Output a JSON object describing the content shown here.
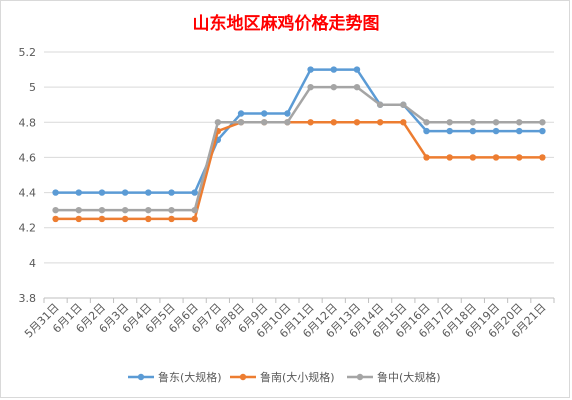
{
  "chart_data": {
    "type": "line",
    "title": "山东地区麻鸡价格走势图",
    "xlabel": "",
    "ylabel": "",
    "ylim": [
      3.8,
      5.2
    ],
    "yticks": [
      "3.8",
      "4",
      "4.2",
      "4.4",
      "4.6",
      "4.8",
      "5",
      "5.2"
    ],
    "grid": "horizontal",
    "legend_position": "bottom",
    "categories": [
      "5月31日",
      "6月1日",
      "6月2日",
      "6月3日",
      "6月4日",
      "6月5日",
      "6月6日",
      "6月7日",
      "6月8日",
      "6月9日",
      "6月10日",
      "6月11日",
      "6月12日",
      "6月13日",
      "6月14日",
      "6月15日",
      "6月16日",
      "6月17日",
      "6月18日",
      "6月19日",
      "6月20日",
      "6月21日"
    ],
    "series": [
      {
        "name": "鲁东(大规格)",
        "color": "#5b9bd5",
        "values": [
          4.4,
          4.4,
          4.4,
          4.4,
          4.4,
          4.4,
          4.4,
          4.7,
          4.85,
          4.85,
          4.85,
          5.1,
          5.1,
          5.1,
          4.9,
          4.9,
          4.75,
          4.75,
          4.75,
          4.75,
          4.75,
          4.75
        ]
      },
      {
        "name": "鲁南(大小规格)",
        "color": "#ed7d31",
        "values": [
          4.25,
          4.25,
          4.25,
          4.25,
          4.25,
          4.25,
          4.25,
          4.75,
          4.8,
          4.8,
          4.8,
          4.8,
          4.8,
          4.8,
          4.8,
          4.8,
          4.6,
          4.6,
          4.6,
          4.6,
          4.6,
          4.6
        ]
      },
      {
        "name": "鲁中(大规格)",
        "color": "#a5a5a5",
        "values": [
          4.3,
          4.3,
          4.3,
          4.3,
          4.3,
          4.3,
          4.3,
          4.8,
          4.8,
          4.8,
          4.8,
          5.0,
          5.0,
          5.0,
          4.9,
          4.9,
          4.8,
          4.8,
          4.8,
          4.8,
          4.8,
          4.8
        ]
      }
    ]
  }
}
